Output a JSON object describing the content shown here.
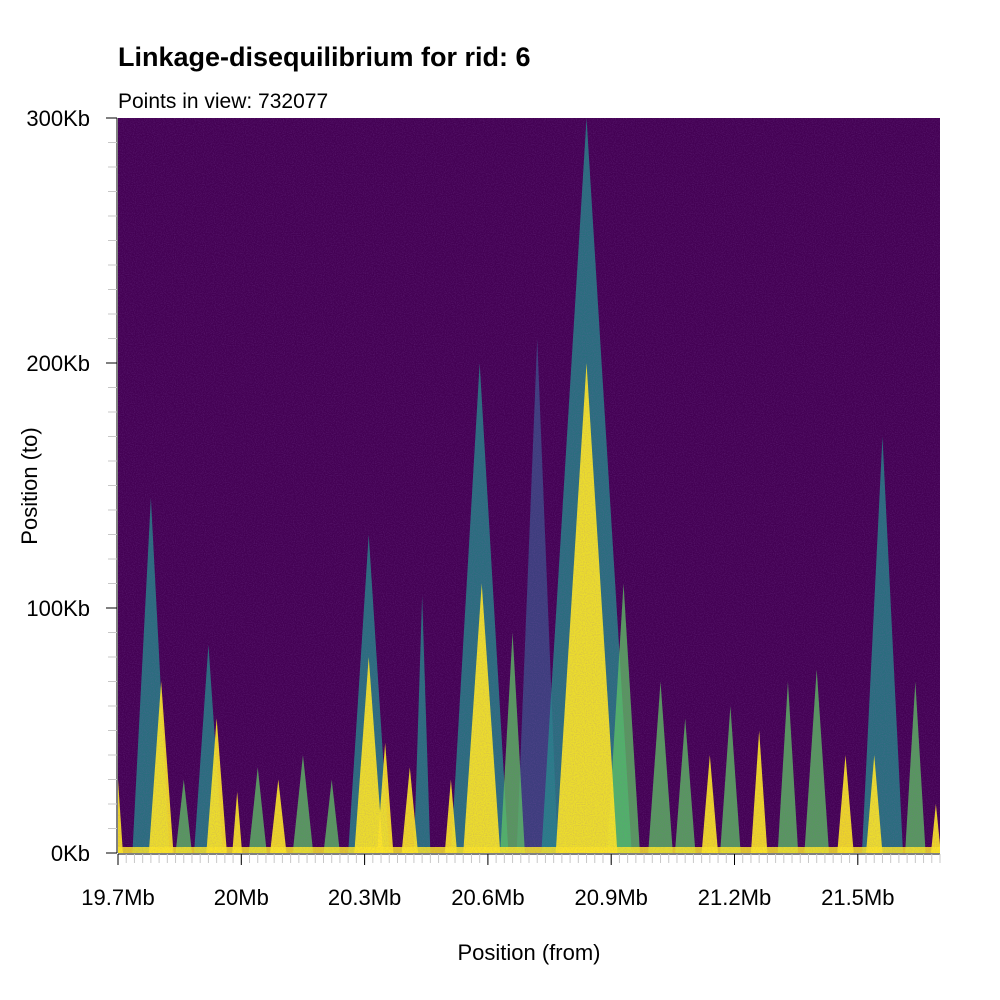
{
  "chart_data": {
    "type": "heatmap",
    "title": "Linkage-disequilibrium for rid: 6",
    "subtitle": "Points in view: 732077",
    "xlabel": "Position (from)",
    "ylabel": "Position (to)",
    "x_unit": "Mb",
    "y_unit": "Kb",
    "xlim": [
      19.7,
      21.7
    ],
    "ylim": [
      0,
      300
    ],
    "x_ticks": [
      {
        "value": 19.7,
        "label": "19.7Mb"
      },
      {
        "value": 20.0,
        "label": "20Mb"
      },
      {
        "value": 20.3,
        "label": "20.3Mb"
      },
      {
        "value": 20.6,
        "label": "20.6Mb"
      },
      {
        "value": 20.9,
        "label": "20.9Mb"
      },
      {
        "value": 21.2,
        "label": "21.2Mb"
      },
      {
        "value": 21.5,
        "label": "21.5Mb"
      }
    ],
    "y_ticks": [
      {
        "value": 0,
        "label": "0Kb"
      },
      {
        "value": 100,
        "label": "100Kb"
      },
      {
        "value": 200,
        "label": "200Kb"
      },
      {
        "value": 300,
        "label": "300Kb"
      }
    ],
    "background_color": "#440154",
    "color_scale": [
      "#440154",
      "#3b528b",
      "#21918c",
      "#5ec962",
      "#fde725"
    ],
    "ld_blocks": [
      {
        "center": 19.7,
        "half_width": 0.012,
        "height": 30,
        "level": 4
      },
      {
        "center": 19.78,
        "half_width": 0.045,
        "height": 145,
        "level": 2
      },
      {
        "center": 19.805,
        "half_width": 0.03,
        "height": 70,
        "level": 4
      },
      {
        "center": 19.86,
        "half_width": 0.02,
        "height": 30,
        "level": 3
      },
      {
        "center": 19.92,
        "half_width": 0.035,
        "height": 85,
        "level": 2
      },
      {
        "center": 19.94,
        "half_width": 0.025,
        "height": 55,
        "level": 4
      },
      {
        "center": 19.99,
        "half_width": 0.012,
        "height": 25,
        "level": 4
      },
      {
        "center": 20.04,
        "half_width": 0.022,
        "height": 35,
        "level": 3
      },
      {
        "center": 20.09,
        "half_width": 0.02,
        "height": 30,
        "level": 4
      },
      {
        "center": 20.15,
        "half_width": 0.025,
        "height": 40,
        "level": 3
      },
      {
        "center": 20.22,
        "half_width": 0.02,
        "height": 30,
        "level": 3
      },
      {
        "center": 20.31,
        "half_width": 0.05,
        "height": 130,
        "level": 2
      },
      {
        "center": 20.31,
        "half_width": 0.035,
        "height": 80,
        "level": 4
      },
      {
        "center": 20.35,
        "half_width": 0.02,
        "height": 45,
        "level": 4
      },
      {
        "center": 20.44,
        "half_width": 0.02,
        "height": 105,
        "level": 2
      },
      {
        "center": 20.41,
        "half_width": 0.02,
        "height": 35,
        "level": 4
      },
      {
        "center": 20.51,
        "half_width": 0.015,
        "height": 30,
        "level": 4
      },
      {
        "center": 20.58,
        "half_width": 0.07,
        "height": 200,
        "level": 2
      },
      {
        "center": 20.585,
        "half_width": 0.045,
        "height": 110,
        "level": 4
      },
      {
        "center": 20.66,
        "half_width": 0.03,
        "height": 90,
        "level": 3
      },
      {
        "center": 20.72,
        "half_width": 0.05,
        "height": 210,
        "level": 1
      },
      {
        "center": 20.84,
        "half_width": 0.11,
        "height": 300,
        "level": 2
      },
      {
        "center": 20.84,
        "half_width": 0.075,
        "height": 200,
        "level": 4
      },
      {
        "center": 20.93,
        "half_width": 0.04,
        "height": 110,
        "level": 3
      },
      {
        "center": 21.02,
        "half_width": 0.03,
        "height": 70,
        "level": 3
      },
      {
        "center": 21.08,
        "half_width": 0.025,
        "height": 55,
        "level": 3
      },
      {
        "center": 21.14,
        "half_width": 0.02,
        "height": 40,
        "level": 4
      },
      {
        "center": 21.19,
        "half_width": 0.025,
        "height": 60,
        "level": 3
      },
      {
        "center": 21.26,
        "half_width": 0.02,
        "height": 50,
        "level": 4
      },
      {
        "center": 21.33,
        "half_width": 0.025,
        "height": 70,
        "level": 3
      },
      {
        "center": 21.4,
        "half_width": 0.03,
        "height": 75,
        "level": 3
      },
      {
        "center": 21.47,
        "half_width": 0.02,
        "height": 40,
        "level": 4
      },
      {
        "center": 21.56,
        "half_width": 0.05,
        "height": 170,
        "level": 2
      },
      {
        "center": 21.54,
        "half_width": 0.02,
        "height": 40,
        "level": 4
      },
      {
        "center": 21.64,
        "half_width": 0.025,
        "height": 70,
        "level": 3
      },
      {
        "center": 21.69,
        "half_width": 0.012,
        "height": 20,
        "level": 4
      }
    ]
  }
}
